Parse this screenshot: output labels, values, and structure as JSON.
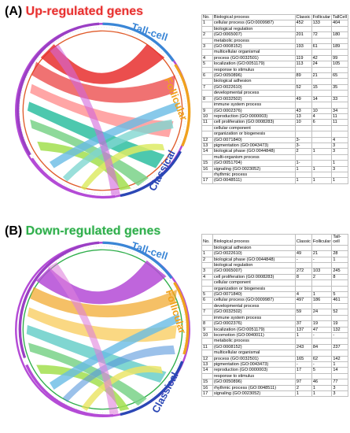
{
  "panel_a": {
    "label": "(A)",
    "title": "Up-regulated genes",
    "groups": [
      "Tall-cell",
      "Follicular",
      "Classical"
    ],
    "table": {
      "headers": [
        "No.",
        "Biological process",
        "Classic",
        "Follicular",
        "TallCell"
      ],
      "rows": [
        [
          "1",
          "cellular process (GO:0009987)",
          "452",
          "133",
          "404"
        ],
        [
          "",
          "biological regulation",
          "",
          "",
          ""
        ],
        [
          "2",
          "(GO:0065007)",
          "201",
          "72",
          "180"
        ],
        [
          "",
          "metabolic process",
          "",
          "",
          ""
        ],
        [
          "3",
          "(GO:0008152)",
          "193",
          "61",
          "189"
        ],
        [
          "",
          "multicellular organismal",
          "",
          "",
          ""
        ],
        [
          "4",
          "process (GO:0032501)",
          "119",
          "42",
          "99"
        ],
        [
          "5",
          "localization (GO:0051179)",
          "113",
          "24",
          "105"
        ],
        [
          "",
          "response to stimulus",
          "",
          "",
          ""
        ],
        [
          "6",
          "(GO:0050896)",
          "89",
          "21",
          "65"
        ],
        [
          "",
          "biological adhesion",
          "",
          "",
          ""
        ],
        [
          "7",
          "(GO:0022610)",
          "52",
          "15",
          "35"
        ],
        [
          "",
          "developmental process",
          "",
          "",
          ""
        ],
        [
          "8",
          "(GO:0032502)",
          "49",
          "14",
          "33"
        ],
        [
          "",
          "immune system process",
          "",
          "",
          ""
        ],
        [
          "9",
          "(GO:0002376)",
          "43",
          "10",
          "34"
        ],
        [
          "10",
          "reproduction (GO:0000003)",
          "13",
          "4",
          "11"
        ],
        [
          "11",
          "cell proliferation (GO:0008283)",
          "10",
          "6",
          "11"
        ],
        [
          "",
          "cellular component",
          "",
          "",
          ""
        ],
        [
          "",
          "organization or biogenesis",
          "",
          "",
          ""
        ],
        [
          "12",
          "(GO:0071840)",
          "3-",
          "",
          "4"
        ],
        [
          "13",
          "pigmentation (GO:0043473)",
          "3-",
          "",
          "3"
        ],
        [
          "14",
          "biological phase (GO:0044848)",
          "2",
          "1",
          "3"
        ],
        [
          "",
          "multi-organism process",
          "",
          "",
          ""
        ],
        [
          "15",
          "(GO:0051704)",
          "1-",
          "",
          "1"
        ],
        [
          "16",
          "signaling (GO:0023052)",
          "1",
          "1",
          "3"
        ],
        [
          "",
          "rhythmic process",
          "",
          "",
          ""
        ],
        [
          "17",
          "(GO:0048511)",
          "1",
          "1",
          "1"
        ]
      ]
    }
  },
  "panel_b": {
    "label": "(B)",
    "title": "Down-regulated genes",
    "groups": [
      "Tall-cell",
      "Follicular",
      "Classical"
    ],
    "table": {
      "headers": [
        "No.",
        "Biological process",
        "Classic",
        "Follicular",
        "Tall- cell"
      ],
      "rows": [
        [
          "",
          "biological adhesion",
          "",
          "",
          ""
        ],
        [
          "1",
          "(GO:0022610)",
          "49",
          "21",
          "28"
        ],
        [
          "2",
          "biological phase (GO:0044848)",
          "-",
          "-",
          "1"
        ],
        [
          "",
          "biological regulation",
          "",
          "",
          ""
        ],
        [
          "3",
          "(GO:0065007)",
          "272",
          "103",
          "245"
        ],
        [
          "4",
          "cell proliferation (GO:0008283)",
          "8",
          "2",
          "8"
        ],
        [
          "",
          "cellular component",
          "",
          "",
          ""
        ],
        [
          "",
          "organization or biogenesis",
          "",
          "",
          ""
        ],
        [
          "5",
          "(GO:0071840)",
          "4",
          "1",
          "5"
        ],
        [
          "6",
          "cellular process (GO:0009987)",
          "497",
          "186",
          "461"
        ],
        [
          "",
          "developmental process",
          "",
          "",
          ""
        ],
        [
          "7",
          "(GO:0032502)",
          "59",
          "24",
          "52"
        ],
        [
          "",
          "immune system process",
          "",
          "",
          ""
        ],
        [
          "8",
          "(GO:0002376)",
          "37",
          "19",
          "19"
        ],
        [
          "9",
          "localization (GO:0051179)",
          "137",
          "47",
          "132"
        ],
        [
          "10",
          "locomotion (GO:0040011)",
          "1",
          "-",
          "-"
        ],
        [
          "",
          "metabolic process",
          "",
          "",
          ""
        ],
        [
          "11",
          "(GO:0008152)",
          "243",
          "84",
          "237"
        ],
        [
          "",
          "multicellular organismal",
          "",
          "",
          ""
        ],
        [
          "12",
          "process (GO:0032501)",
          "165",
          "62",
          "142"
        ],
        [
          "13",
          "pigmentation (GO:0043473)",
          "-",
          "-",
          "1"
        ],
        [
          "14",
          "reproduction (GO:0000003)",
          "17",
          "5",
          "14"
        ],
        [
          "",
          "response to stimulus",
          "",
          "",
          ""
        ],
        [
          "15",
          "(GO:0050896)",
          "97",
          "46",
          "77"
        ],
        [
          "16",
          "rhythmic process (GO:0048511)",
          "2",
          "1",
          "3"
        ],
        [
          "17",
          "signaling (GO:0023052)",
          "1",
          "1",
          "3"
        ]
      ]
    }
  },
  "colors": {
    "up_title": "#e8302f",
    "down_title": "#2fae4b",
    "tall_cell": "#3a86d6",
    "follicular": "#f0a21e",
    "classical": "#2b47b5"
  }
}
